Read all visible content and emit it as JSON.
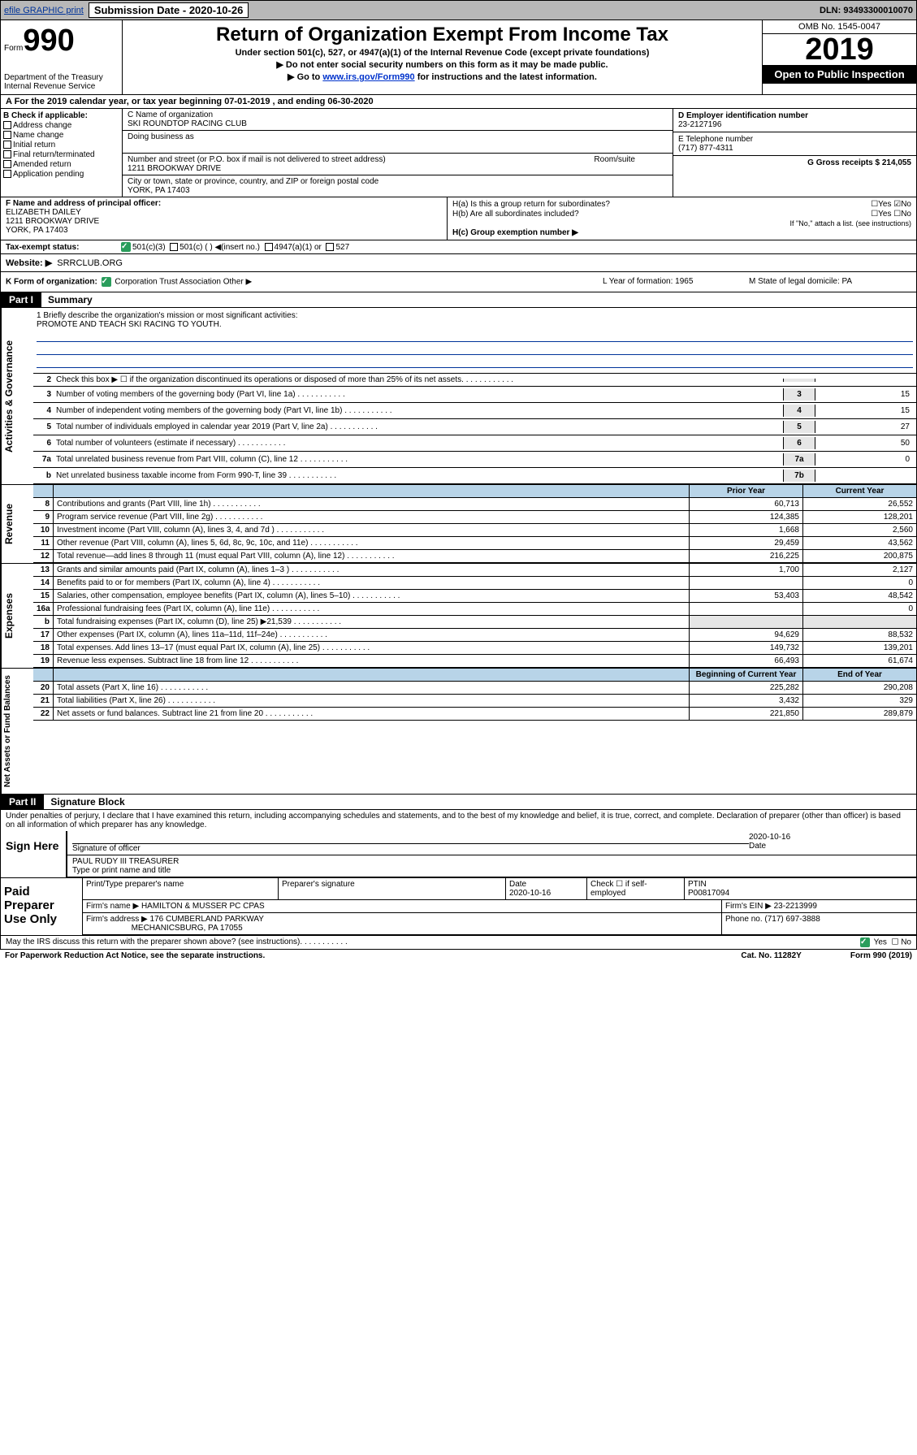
{
  "top": {
    "efile": "efile GRAPHIC print",
    "sub_date_label": "Submission Date - 2020-10-26",
    "dln": "DLN: 93493300010070"
  },
  "header": {
    "form": "Form",
    "num": "990",
    "dept": "Department of the Treasury\nInternal Revenue Service",
    "title": "Return of Organization Exempt From Income Tax",
    "subtitle": "Under section 501(c), 527, or 4947(a)(1) of the Internal Revenue Code (except private foundations)",
    "line1": "▶ Do not enter social security numbers on this form as it may be made public.",
    "line2a": "▶ Go to ",
    "line2link": "www.irs.gov/Form990",
    "line2b": " for instructions and the latest information.",
    "omb": "OMB No. 1545-0047",
    "year": "2019",
    "open": "Open to Public Inspection"
  },
  "period": "A For the 2019 calendar year, or tax year beginning 07-01-2019     , and ending 06-30-2020",
  "secB": {
    "title": "B Check if applicable:",
    "opts": [
      "Address change",
      "Name change",
      "Initial return",
      "Final return/terminated",
      "Amended return",
      "Application pending"
    ],
    "c_label": "C Name of organization",
    "c_name": "SKI ROUNDTOP RACING CLUB",
    "dba": "Doing business as",
    "addr_label": "Number and street (or P.O. box if mail is not delivered to street address)",
    "room": "Room/suite",
    "addr": "1211 BROOKWAY DRIVE",
    "city_label": "City or town, state or province, country, and ZIP or foreign postal code",
    "city": "YORK, PA  17403",
    "d_label": "D Employer identification number",
    "ein": "23-2127196",
    "e_label": "E Telephone number",
    "phone": "(717) 877-4311",
    "g_label": "G Gross receipts $ 214,055"
  },
  "secF": {
    "label": "F  Name and address of principal officer:",
    "name": "ELIZABETH DAILEY",
    "addr": "1211 BROOKWAY DRIVE",
    "city": "YORK, PA  17403"
  },
  "secH": {
    "ha": "H(a)  Is this a group return for subordinates?",
    "hb": "H(b)  Are all subordinates included?",
    "hb2": "If \"No,\" attach a list. (see instructions)",
    "hc": "H(c)  Group exemption number ▶"
  },
  "secI": {
    "label": "Tax-exempt status:",
    "o1": "501(c)(3)",
    "o2": "501(c) (   ) ◀(insert no.)",
    "o3": "4947(a)(1) or",
    "o4": "527"
  },
  "secJ": {
    "label": "Website: ▶",
    "val": "SRRCLUB.ORG"
  },
  "secK": {
    "label": "K Form of organization:",
    "opts": "Corporation      Trust      Association      Other ▶",
    "l": "L Year of formation: 1965",
    "m": "M State of legal domicile: PA"
  },
  "partI": {
    "label": "Part I",
    "name": "Summary"
  },
  "mission": {
    "q": "1  Briefly describe the organization's mission or most significant activities:",
    "a": "PROMOTE AND TEACH SKI RACING TO YOUTH."
  },
  "lines": [
    {
      "n": "2",
      "t": "Check this box ▶ ☐  if the organization discontinued its operations or disposed of more than 25% of its net assets.",
      "b": "",
      "v": ""
    },
    {
      "n": "3",
      "t": "Number of voting members of the governing body (Part VI, line 1a)",
      "b": "3",
      "v": "15"
    },
    {
      "n": "4",
      "t": "Number of independent voting members of the governing body (Part VI, line 1b)",
      "b": "4",
      "v": "15"
    },
    {
      "n": "5",
      "t": "Total number of individuals employed in calendar year 2019 (Part V, line 2a)",
      "b": "5",
      "v": "27"
    },
    {
      "n": "6",
      "t": "Total number of volunteers (estimate if necessary)",
      "b": "6",
      "v": "50"
    },
    {
      "n": "7a",
      "t": "Total unrelated business revenue from Part VIII, column (C), line 12",
      "b": "7a",
      "v": "0"
    },
    {
      "n": "b",
      "t": "Net unrelated business taxable income from Form 990-T, line 39",
      "b": "7b",
      "v": ""
    }
  ],
  "revHdr": {
    "prior": "Prior Year",
    "curr": "Current Year"
  },
  "revenue": [
    {
      "n": "8",
      "t": "Contributions and grants (Part VIII, line 1h)",
      "p": "60,713",
      "c": "26,552"
    },
    {
      "n": "9",
      "t": "Program service revenue (Part VIII, line 2g)",
      "p": "124,385",
      "c": "128,201"
    },
    {
      "n": "10",
      "t": "Investment income (Part VIII, column (A), lines 3, 4, and 7d )",
      "p": "1,668",
      "c": "2,560"
    },
    {
      "n": "11",
      "t": "Other revenue (Part VIII, column (A), lines 5, 6d, 8c, 9c, 10c, and 11e)",
      "p": "29,459",
      "c": "43,562"
    },
    {
      "n": "12",
      "t": "Total revenue—add lines 8 through 11 (must equal Part VIII, column (A), line 12)",
      "p": "216,225",
      "c": "200,875"
    }
  ],
  "expenses": [
    {
      "n": "13",
      "t": "Grants and similar amounts paid (Part IX, column (A), lines 1–3 )",
      "p": "1,700",
      "c": "2,127"
    },
    {
      "n": "14",
      "t": "Benefits paid to or for members (Part IX, column (A), line 4)",
      "p": "",
      "c": "0"
    },
    {
      "n": "15",
      "t": "Salaries, other compensation, employee benefits (Part IX, column (A), lines 5–10)",
      "p": "53,403",
      "c": "48,542"
    },
    {
      "n": "16a",
      "t": "Professional fundraising fees (Part IX, column (A), line 11e)",
      "p": "",
      "c": "0"
    },
    {
      "n": "b",
      "t": "Total fundraising expenses (Part IX, column (D), line 25) ▶21,539",
      "p": "",
      "c": ""
    },
    {
      "n": "17",
      "t": "Other expenses (Part IX, column (A), lines 11a–11d, 11f–24e)",
      "p": "94,629",
      "c": "88,532"
    },
    {
      "n": "18",
      "t": "Total expenses. Add lines 13–17 (must equal Part IX, column (A), line 25)",
      "p": "149,732",
      "c": "139,201"
    },
    {
      "n": "19",
      "t": "Revenue less expenses. Subtract line 18 from line 12",
      "p": "66,493",
      "c": "61,674"
    }
  ],
  "netHdr": {
    "prior": "Beginning of Current Year",
    "curr": "End of Year"
  },
  "net": [
    {
      "n": "20",
      "t": "Total assets (Part X, line 16)",
      "p": "225,282",
      "c": "290,208"
    },
    {
      "n": "21",
      "t": "Total liabilities (Part X, line 26)",
      "p": "3,432",
      "c": "329"
    },
    {
      "n": "22",
      "t": "Net assets or fund balances. Subtract line 21 from line 20",
      "p": "221,850",
      "c": "289,879"
    }
  ],
  "partII": {
    "label": "Part II",
    "name": "Signature Block"
  },
  "sig": {
    "text": "Under penalties of perjury, I declare that I have examined this return, including accompanying schedules and statements, and to the best of my knowledge and belief, it is true, correct, and complete. Declaration of preparer (other than officer) is based on all information of which preparer has any knowledge.",
    "sign_here": "Sign Here",
    "sig_officer": "Signature of officer",
    "date": "2020-10-16",
    "date_lbl": "Date",
    "name": "PAUL RUDY III TREASURER",
    "name_lbl": "Type or print name and title"
  },
  "prep": {
    "title": "Paid Preparer Use Only",
    "h1": "Print/Type preparer's name",
    "h2": "Preparer's signature",
    "h3": "Date",
    "h3v": "2020-10-16",
    "h4": "Check ☐ if self-employed",
    "h5": "PTIN",
    "h5v": "P00817094",
    "firm_lbl": "Firm's name     ▶",
    "firm": "HAMILTON & MUSSER PC CPAS",
    "ein_lbl": "Firm's EIN ▶",
    "ein": "23-2213999",
    "addr_lbl": "Firm's address ▶",
    "addr": "176 CUMBERLAND PARKWAY",
    "addr2": "MECHANICSBURG, PA  17055",
    "ph_lbl": "Phone no.",
    "ph": "(717) 697-3888"
  },
  "foot": {
    "q": "May the IRS discuss this return with the preparer shown above? (see instructions)",
    "paperwork": "For Paperwork Reduction Act Notice, see the separate instructions.",
    "cat": "Cat. No. 11282Y",
    "form": "Form 990 (2019)"
  }
}
